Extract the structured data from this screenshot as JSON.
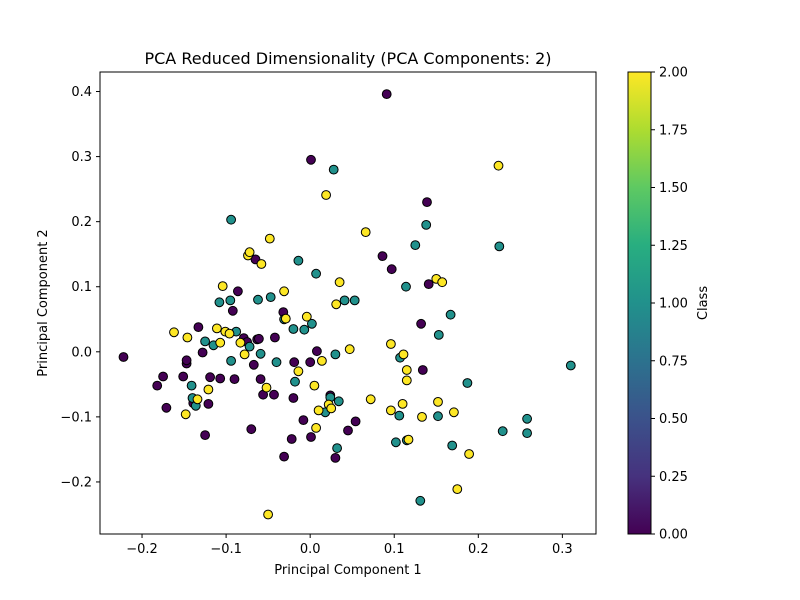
{
  "chart_data": {
    "type": "scatter",
    "title": "PCA Reduced Dimensionality (PCA Components: 2)",
    "xlabel": "Principal Component 1",
    "ylabel": "Principal Component 2",
    "xlim": [
      -0.25,
      0.34
    ],
    "ylim": [
      -0.28,
      0.43
    ],
    "xticks": [
      -0.2,
      -0.1,
      0.0,
      0.1,
      0.2,
      0.3
    ],
    "xtick_labels": [
      "−0.2",
      "−0.1",
      "0.0",
      "0.1",
      "0.2",
      "0.3"
    ],
    "yticks": [
      -0.2,
      -0.1,
      0.0,
      0.1,
      0.2,
      0.3,
      0.4
    ],
    "ytick_labels": [
      "−0.2",
      "−0.1",
      "0.0",
      "0.1",
      "0.2",
      "0.3",
      "0.4"
    ],
    "grid": false,
    "colorbar": {
      "label": "Class",
      "colormap": "viridis",
      "range": [
        0.0,
        2.0
      ],
      "ticks": [
        0.0,
        0.25,
        0.5,
        0.75,
        1.0,
        1.25,
        1.5,
        1.75,
        2.0
      ],
      "tick_labels": [
        "0.00",
        "0.25",
        "0.50",
        "0.75",
        "1.00",
        "1.25",
        "1.50",
        "1.75",
        "2.00"
      ]
    },
    "class_colors": {
      "0": "#440154",
      "1": "#21918c",
      "2": "#fde725"
    },
    "points": [
      {
        "x": -0.222,
        "y": -0.008,
        "c": 0
      },
      {
        "x": -0.182,
        "y": -0.052,
        "c": 0
      },
      {
        "x": -0.175,
        "y": -0.038,
        "c": 0
      },
      {
        "x": -0.171,
        "y": -0.086,
        "c": 0
      },
      {
        "x": -0.151,
        "y": -0.038,
        "c": 0
      },
      {
        "x": -0.147,
        "y": -0.018,
        "c": 0
      },
      {
        "x": -0.147,
        "y": -0.013,
        "c": 0
      },
      {
        "x": -0.139,
        "y": -0.079,
        "c": 0
      },
      {
        "x": -0.133,
        "y": 0.038,
        "c": 0
      },
      {
        "x": -0.128,
        "y": -0.001,
        "c": 0
      },
      {
        "x": -0.125,
        "y": -0.128,
        "c": 0
      },
      {
        "x": -0.121,
        "y": -0.08,
        "c": 0
      },
      {
        "x": -0.119,
        "y": -0.039,
        "c": 0
      },
      {
        "x": -0.107,
        "y": -0.041,
        "c": 0
      },
      {
        "x": -0.092,
        "y": 0.063,
        "c": 0
      },
      {
        "x": -0.09,
        "y": -0.042,
        "c": 0
      },
      {
        "x": -0.086,
        "y": 0.093,
        "c": 0
      },
      {
        "x": -0.079,
        "y": 0.021,
        "c": 0
      },
      {
        "x": -0.075,
        "y": 0.015,
        "c": 0
      },
      {
        "x": -0.07,
        "y": -0.119,
        "c": 0
      },
      {
        "x": -0.067,
        "y": -0.02,
        "c": 0
      },
      {
        "x": -0.065,
        "y": 0.142,
        "c": 0
      },
      {
        "x": -0.063,
        "y": 0.019,
        "c": 0
      },
      {
        "x": -0.061,
        "y": 0.02,
        "c": 0
      },
      {
        "x": -0.059,
        "y": -0.042,
        "c": 0
      },
      {
        "x": -0.056,
        "y": -0.066,
        "c": 0
      },
      {
        "x": -0.043,
        "y": -0.066,
        "c": 0
      },
      {
        "x": -0.042,
        "y": 0.022,
        "c": 0
      },
      {
        "x": -0.032,
        "y": 0.061,
        "c": 0
      },
      {
        "x": -0.031,
        "y": -0.161,
        "c": 0
      },
      {
        "x": -0.022,
        "y": -0.134,
        "c": 0
      },
      {
        "x": -0.02,
        "y": -0.071,
        "c": 0
      },
      {
        "x": -0.019,
        "y": -0.016,
        "c": 0
      },
      {
        "x": -0.008,
        "y": -0.105,
        "c": 0
      },
      {
        "x": 0.0,
        "y": -0.016,
        "c": 0
      },
      {
        "x": 0.001,
        "y": 0.295,
        "c": 0
      },
      {
        "x": 0.001,
        "y": -0.131,
        "c": 0
      },
      {
        "x": 0.008,
        "y": 0.001,
        "c": 0
      },
      {
        "x": 0.024,
        "y": -0.067,
        "c": 0
      },
      {
        "x": 0.03,
        "y": -0.163,
        "c": 0
      },
      {
        "x": 0.045,
        "y": -0.121,
        "c": 0
      },
      {
        "x": 0.054,
        "y": -0.107,
        "c": 0
      },
      {
        "x": 0.086,
        "y": 0.147,
        "c": 0
      },
      {
        "x": 0.091,
        "y": 0.396,
        "c": 0
      },
      {
        "x": 0.097,
        "y": 0.127,
        "c": 0
      },
      {
        "x": 0.132,
        "y": 0.043,
        "c": 0
      },
      {
        "x": 0.134,
        "y": -0.028,
        "c": 0
      },
      {
        "x": 0.139,
        "y": 0.23,
        "c": 0
      },
      {
        "x": 0.141,
        "y": 0.104,
        "c": 0
      },
      {
        "x": -0.141,
        "y": -0.052,
        "c": 1
      },
      {
        "x": -0.14,
        "y": -0.071,
        "c": 1
      },
      {
        "x": -0.136,
        "y": -0.083,
        "c": 1
      },
      {
        "x": -0.125,
        "y": 0.016,
        "c": 1
      },
      {
        "x": -0.115,
        "y": 0.01,
        "c": 1
      },
      {
        "x": -0.108,
        "y": 0.076,
        "c": 1
      },
      {
        "x": -0.095,
        "y": 0.079,
        "c": 1
      },
      {
        "x": -0.094,
        "y": -0.014,
        "c": 1
      },
      {
        "x": -0.094,
        "y": 0.203,
        "c": 1
      },
      {
        "x": -0.088,
        "y": 0.031,
        "c": 1
      },
      {
        "x": -0.072,
        "y": 0.008,
        "c": 1
      },
      {
        "x": -0.062,
        "y": 0.08,
        "c": 1
      },
      {
        "x": -0.059,
        "y": -0.003,
        "c": 1
      },
      {
        "x": -0.047,
        "y": 0.084,
        "c": 1
      },
      {
        "x": -0.04,
        "y": -0.016,
        "c": 1
      },
      {
        "x": -0.031,
        "y": 0.05,
        "c": 1
      },
      {
        "x": -0.02,
        "y": 0.035,
        "c": 1
      },
      {
        "x": -0.018,
        "y": -0.046,
        "c": 1
      },
      {
        "x": -0.014,
        "y": 0.14,
        "c": 1
      },
      {
        "x": -0.007,
        "y": 0.034,
        "c": 1
      },
      {
        "x": 0.002,
        "y": 0.043,
        "c": 1
      },
      {
        "x": 0.007,
        "y": 0.12,
        "c": 1
      },
      {
        "x": 0.018,
        "y": -0.093,
        "c": 1
      },
      {
        "x": 0.024,
        "y": -0.07,
        "c": 1
      },
      {
        "x": 0.028,
        "y": 0.28,
        "c": 1
      },
      {
        "x": 0.03,
        "y": -0.004,
        "c": 1
      },
      {
        "x": 0.032,
        "y": -0.148,
        "c": 1
      },
      {
        "x": 0.034,
        "y": -0.076,
        "c": 1
      },
      {
        "x": 0.041,
        "y": 0.079,
        "c": 1
      },
      {
        "x": 0.053,
        "y": 0.079,
        "c": 1
      },
      {
        "x": 0.102,
        "y": -0.139,
        "c": 1
      },
      {
        "x": 0.106,
        "y": -0.098,
        "c": 1
      },
      {
        "x": 0.107,
        "y": -0.009,
        "c": 1
      },
      {
        "x": 0.114,
        "y": 0.1,
        "c": 1
      },
      {
        "x": 0.115,
        "y": -0.136,
        "c": 1
      },
      {
        "x": 0.125,
        "y": 0.164,
        "c": 1
      },
      {
        "x": 0.131,
        "y": -0.229,
        "c": 1
      },
      {
        "x": 0.138,
        "y": 0.195,
        "c": 1
      },
      {
        "x": 0.152,
        "y": -0.099,
        "c": 1
      },
      {
        "x": 0.153,
        "y": 0.026,
        "c": 1
      },
      {
        "x": 0.167,
        "y": 0.057,
        "c": 1
      },
      {
        "x": 0.169,
        "y": -0.144,
        "c": 1
      },
      {
        "x": 0.187,
        "y": -0.048,
        "c": 1
      },
      {
        "x": 0.225,
        "y": 0.162,
        "c": 1
      },
      {
        "x": 0.229,
        "y": -0.122,
        "c": 1
      },
      {
        "x": 0.258,
        "y": -0.103,
        "c": 1
      },
      {
        "x": 0.258,
        "y": -0.125,
        "c": 1
      },
      {
        "x": 0.31,
        "y": -0.021,
        "c": 1
      },
      {
        "x": -0.162,
        "y": 0.03,
        "c": 2
      },
      {
        "x": -0.148,
        "y": -0.096,
        "c": 2
      },
      {
        "x": -0.146,
        "y": 0.022,
        "c": 2
      },
      {
        "x": -0.134,
        "y": -0.073,
        "c": 2
      },
      {
        "x": -0.121,
        "y": -0.058,
        "c": 2
      },
      {
        "x": -0.111,
        "y": 0.036,
        "c": 2
      },
      {
        "x": -0.107,
        "y": 0.014,
        "c": 2
      },
      {
        "x": -0.104,
        "y": 0.101,
        "c": 2
      },
      {
        "x": -0.101,
        "y": 0.031,
        "c": 2
      },
      {
        "x": -0.096,
        "y": 0.028,
        "c": 2
      },
      {
        "x": -0.083,
        "y": 0.014,
        "c": 2
      },
      {
        "x": -0.078,
        "y": -0.004,
        "c": 2
      },
      {
        "x": -0.074,
        "y": 0.148,
        "c": 2
      },
      {
        "x": -0.072,
        "y": 0.153,
        "c": 2
      },
      {
        "x": -0.058,
        "y": 0.135,
        "c": 2
      },
      {
        "x": -0.052,
        "y": -0.055,
        "c": 2
      },
      {
        "x": -0.05,
        "y": -0.25,
        "c": 2
      },
      {
        "x": -0.048,
        "y": 0.174,
        "c": 2
      },
      {
        "x": -0.031,
        "y": 0.093,
        "c": 2
      },
      {
        "x": -0.029,
        "y": 0.051,
        "c": 2
      },
      {
        "x": -0.014,
        "y": -0.03,
        "c": 2
      },
      {
        "x": -0.004,
        "y": 0.054,
        "c": 2
      },
      {
        "x": 0.005,
        "y": -0.052,
        "c": 2
      },
      {
        "x": 0.007,
        "y": -0.117,
        "c": 2
      },
      {
        "x": 0.01,
        "y": -0.09,
        "c": 2
      },
      {
        "x": 0.014,
        "y": -0.014,
        "c": 2
      },
      {
        "x": 0.019,
        "y": 0.241,
        "c": 2
      },
      {
        "x": 0.022,
        "y": -0.081,
        "c": 2
      },
      {
        "x": 0.025,
        "y": -0.087,
        "c": 2
      },
      {
        "x": 0.031,
        "y": 0.073,
        "c": 2
      },
      {
        "x": 0.035,
        "y": 0.107,
        "c": 2
      },
      {
        "x": 0.047,
        "y": 0.004,
        "c": 2
      },
      {
        "x": 0.066,
        "y": 0.184,
        "c": 2
      },
      {
        "x": 0.072,
        "y": -0.073,
        "c": 2
      },
      {
        "x": 0.096,
        "y": 0.012,
        "c": 2
      },
      {
        "x": 0.096,
        "y": -0.09,
        "c": 2
      },
      {
        "x": 0.11,
        "y": -0.08,
        "c": 2
      },
      {
        "x": 0.111,
        "y": -0.004,
        "c": 2
      },
      {
        "x": 0.115,
        "y": -0.044,
        "c": 2
      },
      {
        "x": 0.115,
        "y": -0.028,
        "c": 2
      },
      {
        "x": 0.117,
        "y": -0.135,
        "c": 2
      },
      {
        "x": 0.133,
        "y": -0.1,
        "c": 2
      },
      {
        "x": 0.15,
        "y": 0.112,
        "c": 2
      },
      {
        "x": 0.152,
        "y": -0.077,
        "c": 2
      },
      {
        "x": 0.157,
        "y": 0.107,
        "c": 2
      },
      {
        "x": 0.171,
        "y": -0.093,
        "c": 2
      },
      {
        "x": 0.175,
        "y": -0.211,
        "c": 2
      },
      {
        "x": 0.189,
        "y": -0.157,
        "c": 2
      },
      {
        "x": 0.224,
        "y": 0.286,
        "c": 2
      }
    ]
  }
}
